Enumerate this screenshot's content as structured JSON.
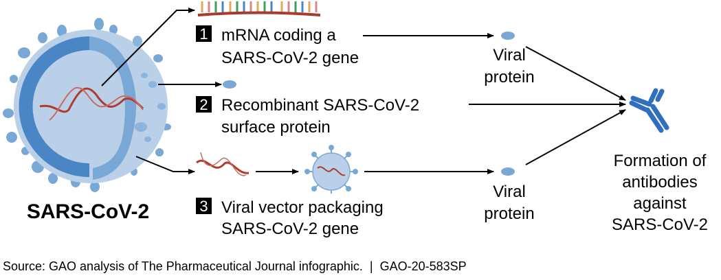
{
  "virus_label": "SARS-CoV-2",
  "steps": [
    {
      "number": "1",
      "lines": [
        "mRNA coding a",
        "SARS-CoV-2 gene"
      ]
    },
    {
      "number": "2",
      "lines": [
        "Recombinant SARS-CoV-2",
        "surface protein"
      ]
    },
    {
      "number": "3",
      "lines": [
        "Viral vector packaging",
        "SARS-CoV-2 gene"
      ]
    }
  ],
  "viral_protein": [
    "Viral",
    "protein"
  ],
  "result": [
    "Formation of",
    "antibodies",
    "against",
    "SARS-CoV-2"
  ],
  "source": "Source: GAO analysis of The Pharmaceutical Journal infographic.  |  GAO-20-583SP",
  "colors": {
    "shell_dark": "#4a86c5",
    "shell_light": "#b9d0e8",
    "shell_mid": "#7aa8d6",
    "rna": "#b03a2e",
    "antibody": "#2f6fbd"
  }
}
